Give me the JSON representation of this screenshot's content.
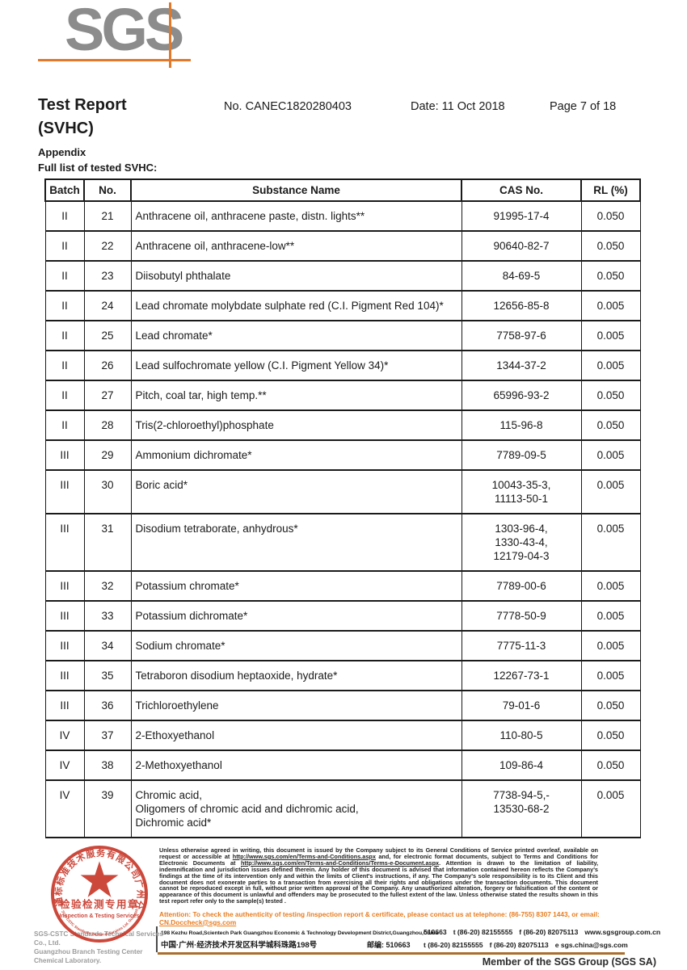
{
  "colors": {
    "accent_orange": "#e2792a",
    "attention_orange": "#e87c1e",
    "stamp_red": "#c8392b",
    "logo_gray": "#8c8c8c",
    "footer_rule_brown": "#ab6e2e"
  },
  "logo": {
    "text": "SGS"
  },
  "header": {
    "title_line1": "Test Report",
    "title_line2": "(SVHC)",
    "report_no": "No. CANEC1820280403",
    "date": "Date: 11 Oct 2018",
    "page_info": "Page 7 of 18"
  },
  "appendix": {
    "label": "Appendix",
    "subtitle": "Full list of tested SVHC:"
  },
  "table": {
    "headers": [
      "Batch",
      "No.",
      "Substance Name",
      "CAS No.",
      "RL (%)"
    ],
    "rows": [
      {
        "batch": "II",
        "no": "21",
        "substance": "Anthracene oil, anthracene paste, distn. lights**",
        "cas": "91995-17-4",
        "rl": "0.050"
      },
      {
        "batch": "II",
        "no": "22",
        "substance": "Anthracene oil, anthracene-low**",
        "cas": "90640-82-7",
        "rl": "0.050"
      },
      {
        "batch": "II",
        "no": "23",
        "substance": "Diisobutyl phthalate",
        "cas": "84-69-5",
        "rl": "0.050"
      },
      {
        "batch": "II",
        "no": "24",
        "substance": "Lead chromate molybdate sulphate red (C.I. Pigment Red 104)*",
        "cas": "12656-85-8",
        "rl": "0.005"
      },
      {
        "batch": "II",
        "no": "25",
        "substance": "Lead chromate*",
        "cas": "7758-97-6",
        "rl": "0.005"
      },
      {
        "batch": "II",
        "no": "26",
        "substance": "Lead sulfochromate yellow (C.I. Pigment Yellow 34)*",
        "cas": "1344-37-2",
        "rl": "0.005"
      },
      {
        "batch": "II",
        "no": "27",
        "substance": "Pitch, coal tar, high temp.**",
        "cas": "65996-93-2",
        "rl": "0.050"
      },
      {
        "batch": "II",
        "no": "28",
        "substance": "Tris(2-chloroethyl)phosphate",
        "cas": "115-96-8",
        "rl": "0.050"
      },
      {
        "batch": "III",
        "no": "29",
        "substance": "Ammonium dichromate*",
        "cas": "7789-09-5",
        "rl": "0.005"
      },
      {
        "batch": "III",
        "no": "30",
        "substance": "Boric acid*",
        "cas": "10043-35-3,\n11113-50-1",
        "rl": "0.005"
      },
      {
        "batch": "III",
        "no": "31",
        "substance": "Disodium tetraborate, anhydrous*",
        "cas": "1303-96-4,\n1330-43-4,\n12179-04-3",
        "rl": "0.005"
      },
      {
        "batch": "III",
        "no": "32",
        "substance": "Potassium chromate*",
        "cas": "7789-00-6",
        "rl": "0.005"
      },
      {
        "batch": "III",
        "no": "33",
        "substance": "Potassium dichromate*",
        "cas": "7778-50-9",
        "rl": "0.005"
      },
      {
        "batch": "III",
        "no": "34",
        "substance": "Sodium chromate*",
        "cas": "7775-11-3",
        "rl": "0.005"
      },
      {
        "batch": "III",
        "no": "35",
        "substance": "Tetraboron disodium heptaoxide, hydrate*",
        "cas": "12267-73-1",
        "rl": "0.005"
      },
      {
        "batch": "III",
        "no": "36",
        "substance": "Trichloroethylene",
        "cas": "79-01-6",
        "rl": "0.050"
      },
      {
        "batch": "IV",
        "no": "37",
        "substance": "2-Ethoxyethanol",
        "cas": "110-80-5",
        "rl": "0.050"
      },
      {
        "batch": "IV",
        "no": "38",
        "substance": "2-Methoxyethanol",
        "cas": "109-86-4",
        "rl": "0.050"
      },
      {
        "batch": "IV",
        "no": "39",
        "substance": "Chromic acid,\nOligomers of chromic acid and dichromic acid,\nDichromic acid*",
        "cas": "7738-94-5,-\n13530-68-2",
        "rl": "0.005"
      }
    ]
  },
  "footer": {
    "disclaimer_segments": [
      {
        "t": "Unless otherwise agreed in writing, this document is issued by the Company subject to its General Conditions of Service printed overleaf, available on request or accessible at ",
        "u": false
      },
      {
        "t": "http://www.sgs.com/en/Terms-and-Conditions.aspx",
        "u": true
      },
      {
        "t": " and, for electronic format documents, subject to Terms and Conditions for Electronic Documents at ",
        "u": false
      },
      {
        "t": "http://www.sgs.com/en/Terms-and-Conditions/Terms-e-Document.aspx",
        "u": true
      },
      {
        "t": ". Attention is drawn to the limitation of liability, indemnification and jurisdiction issues defined therein. Any holder of this document is advised that information contained hereon reflects the Company's findings at the time of its intervention only and within the limits of Client's instructions, if any. The Company's sole responsibility is to its Client and this document does not exonerate parties to a transaction from exercising all their rights and obligations under the transaction documents. This document cannot be reproduced except in full, without prior written approval of the Company. Any unauthorized alteration, forgery or falsification of the content or appearance of this document is unlawful and offenders may be prosecuted to the fullest extent of the law. Unless otherwise stated the results shown in this test report refer only to the sample(s) tested .",
        "u": false
      }
    ],
    "attention_segments": [
      {
        "t": "Attention: To check the authenticity of testing /inspection report & certificate, please contact us at telephone: (86-755) 8307 1443, or email: ",
        "u": false
      },
      {
        "t": "CN.Doccheck@sgs.com",
        "u": true
      }
    ],
    "company_line1": "SGS-CSTC Standards Technical Services Co., Ltd.",
    "company_line2": "Guangzhou Branch Testing Center Chemical Laboratory.",
    "address_en": {
      "text": "198 Kezhu Road,Scientech Park Guangzhou Economic & Technology Development District,Guangzhou,China",
      "postal": "510663",
      "tel": "t (86-20) 82155555",
      "fax": "f (86-20) 82075113",
      "web": "www.sgsgroup.com.cn"
    },
    "address_cn": {
      "text": "中国·广州·经济技术开发区科学城科珠路198号",
      "postal": "邮编: 510663",
      "tel": "t (86-20) 82155555",
      "fax": "f (86-20) 82075113",
      "email": "e  sgs.china@sgs.com"
    },
    "member_text": "Member of the SGS Group (SGS SA)",
    "stamp": {
      "ring_top": "通标标准技术服务有限公司广州分公司",
      "ring_bottom": "SGS-CSTC Standards Technical Services Ltd. Guangzhou Branch",
      "inner_cn": "检验检测专用章",
      "inner_en": "Inspection & Testing Services"
    }
  }
}
